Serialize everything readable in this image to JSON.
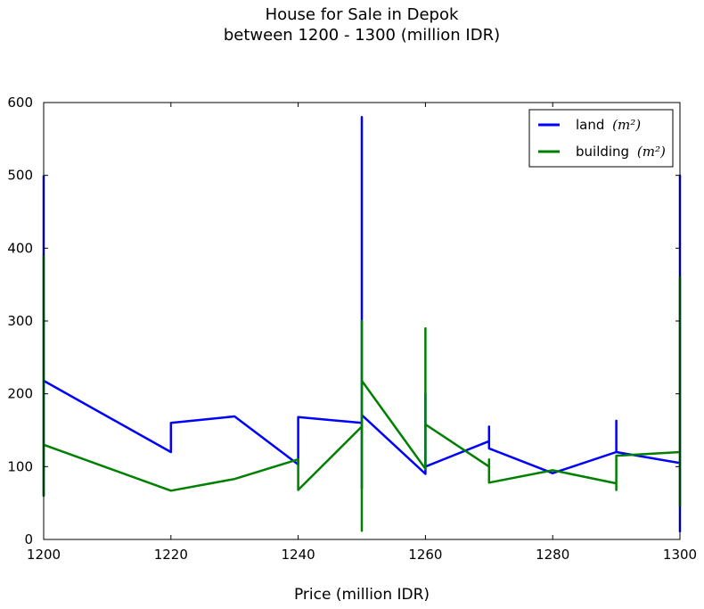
{
  "chart_data": {
    "type": "line",
    "title": "House for Sale in Depok",
    "subtitle": "between 1200 - 1300 (million IDR)",
    "xlabel": "Price (million IDR)",
    "ylabel": "",
    "xlim": [
      1200,
      1300
    ],
    "ylim": [
      0,
      600
    ],
    "xticks": [
      1200,
      1220,
      1240,
      1260,
      1280,
      1300
    ],
    "yticks": [
      0,
      100,
      200,
      300,
      400,
      500,
      600
    ],
    "grid": false,
    "legend_position": "top-right",
    "series": [
      {
        "name": "land",
        "name_math": "(m²)",
        "color": "#0000ff",
        "x": [
          1200,
          1200,
          1200,
          1220,
          1220,
          1230,
          1240,
          1240,
          1250,
          1250,
          1250,
          1250,
          1260,
          1260,
          1260,
          1270,
          1270,
          1270,
          1280,
          1290,
          1290,
          1290,
          1300,
          1300,
          1300
        ],
        "y": [
          500,
          60,
          218,
          120,
          160,
          169,
          103,
          168,
          160,
          580,
          70,
          171,
          90,
          200,
          100,
          135,
          155,
          125,
          91,
          120,
          163,
          120,
          105,
          500,
          10
        ]
      },
      {
        "name": "building",
        "name_math": "(m²)",
        "color": "#008000",
        "x": [
          1200,
          1200,
          1200,
          1220,
          1230,
          1240,
          1240,
          1250,
          1250,
          1250,
          1250,
          1260,
          1260,
          1260,
          1270,
          1270,
          1270,
          1280,
          1290,
          1290,
          1290,
          1300,
          1300,
          1300
        ],
        "y": [
          390,
          60,
          130,
          67,
          83,
          110,
          68,
          155,
          300,
          12,
          218,
          97,
          290,
          158,
          100,
          110,
          78,
          95,
          77,
          68,
          115,
          120,
          360,
          45
        ]
      }
    ]
  }
}
